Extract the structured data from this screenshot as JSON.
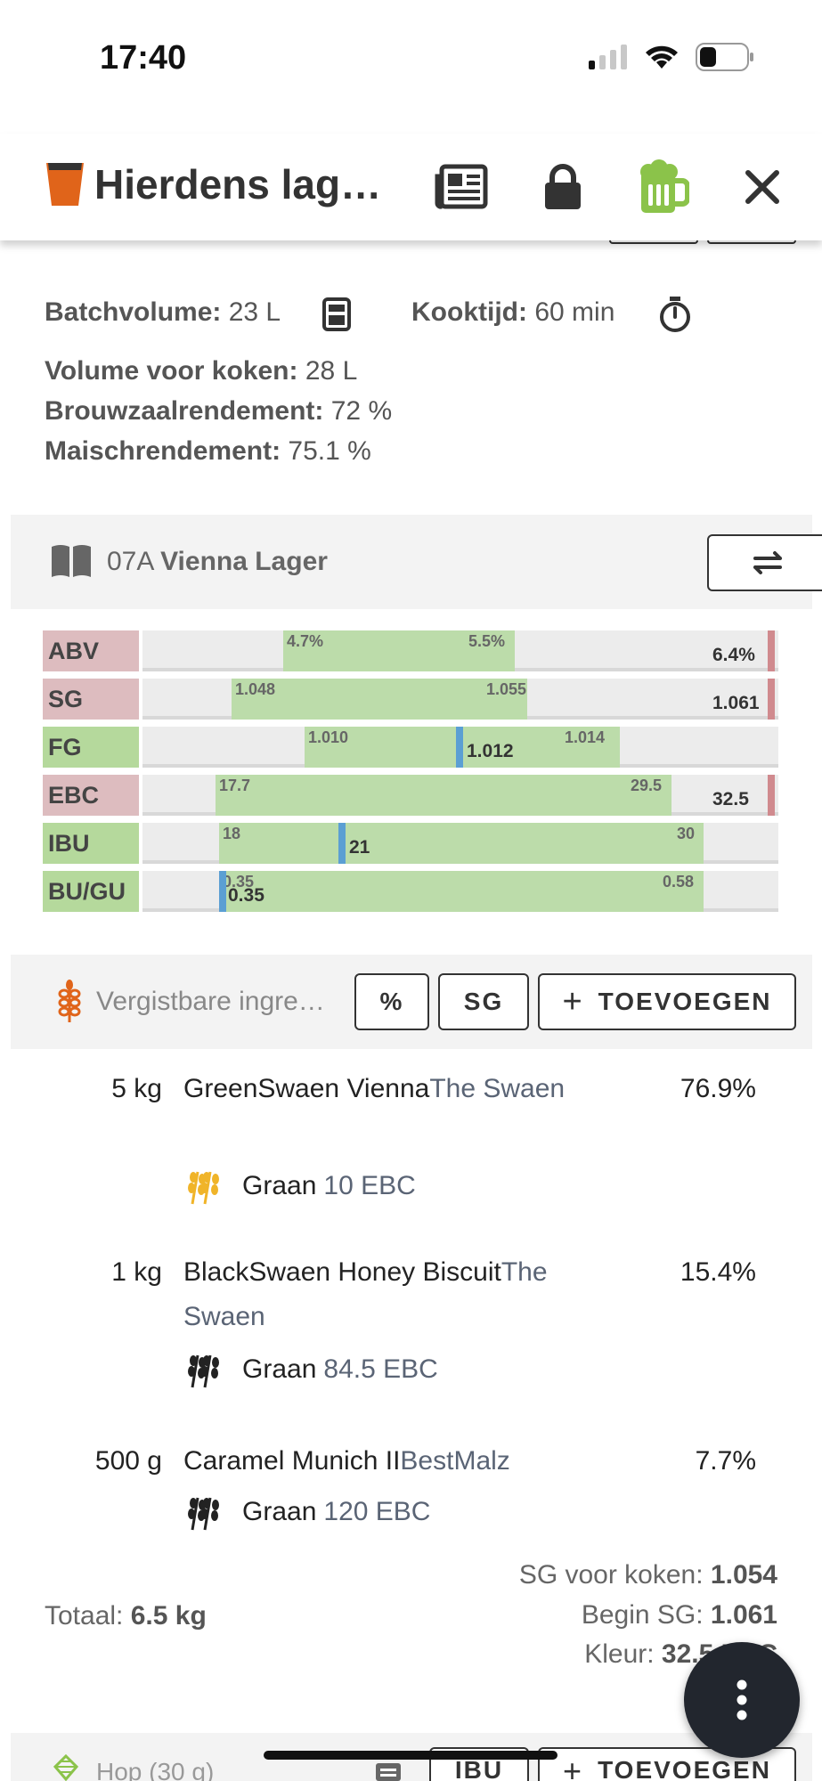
{
  "status": {
    "time": "17:40"
  },
  "header": {
    "title": "Hierdens lag…"
  },
  "batch": {
    "batch_volume_label": "Batchvolume:",
    "batch_volume_value": "23 L",
    "boil_time_label": "Kooktijd:",
    "boil_time_value": "60 min",
    "pre_boil_label": "Volume voor koken:",
    "pre_boil_value": "28 L",
    "efficiency_label": "Brouwzaalrendement:",
    "efficiency_value": "72 %",
    "mash_eff_label": "Maischrendement:",
    "mash_eff_value": "75.1 %"
  },
  "style": {
    "code": "07A",
    "name": "Vienna Lager"
  },
  "stats": [
    {
      "label": "ABV",
      "status": "bad",
      "min": "4.7%",
      "max": "5.5%",
      "value": "6.4%"
    },
    {
      "label": "SG",
      "status": "bad",
      "min": "1.048",
      "max": "1.055",
      "value": "1.061"
    },
    {
      "label": "FG",
      "status": "good",
      "min": "1.010",
      "max": "1.014",
      "value": "1.012"
    },
    {
      "label": "EBC",
      "status": "bad",
      "min": "17.7",
      "max": "29.5",
      "value": "32.5"
    },
    {
      "label": "IBU",
      "status": "good",
      "min": "18",
      "max": "30",
      "value": "21"
    },
    {
      "label": "BU/GU",
      "status": "good",
      "min": "0.35",
      "max": "0.58",
      "value": "0.35"
    }
  ],
  "fermentables": {
    "placeholder": "Vergistbare ingre…",
    "percent_button": "%",
    "sg_button": "SG",
    "add_button": "TOEVOEGEN",
    "items": [
      {
        "amount": "5 kg",
        "name": "GreenSwaen Vienna",
        "brand": "The Swaen",
        "percent": "76.9%",
        "type": "Graan",
        "color": "10 EBC"
      },
      {
        "amount": "1 kg",
        "name": "BlackSwaen Honey Biscuit",
        "brand": "The Swaen",
        "percent": "15.4%",
        "type": "Graan",
        "color": "84.5 EBC"
      },
      {
        "amount": "500 g",
        "name": "Caramel Munich II",
        "brand": "BestMalz",
        "percent": "7.7%",
        "type": "Graan",
        "color": "120 EBC"
      }
    ],
    "total_label": "Totaal:",
    "total_value": "6.5 kg",
    "pre_boil_sg_label": "SG voor koken:",
    "pre_boil_sg_value": "1.054",
    "og_label": "Begin SG:",
    "og_value": "1.061",
    "color_label": "Kleur:",
    "color_value": "32.5 EBC"
  },
  "hops": {
    "placeholder": "Hop (30 g)",
    "ibu_button": "IBU",
    "add_button": "TOEVOEGEN"
  },
  "colors": {
    "accent_green": "#8bc34a",
    "beer_orange": "#e0641a",
    "marker_blue": "#5b9fd3",
    "bad_red": "#d08a8e"
  }
}
